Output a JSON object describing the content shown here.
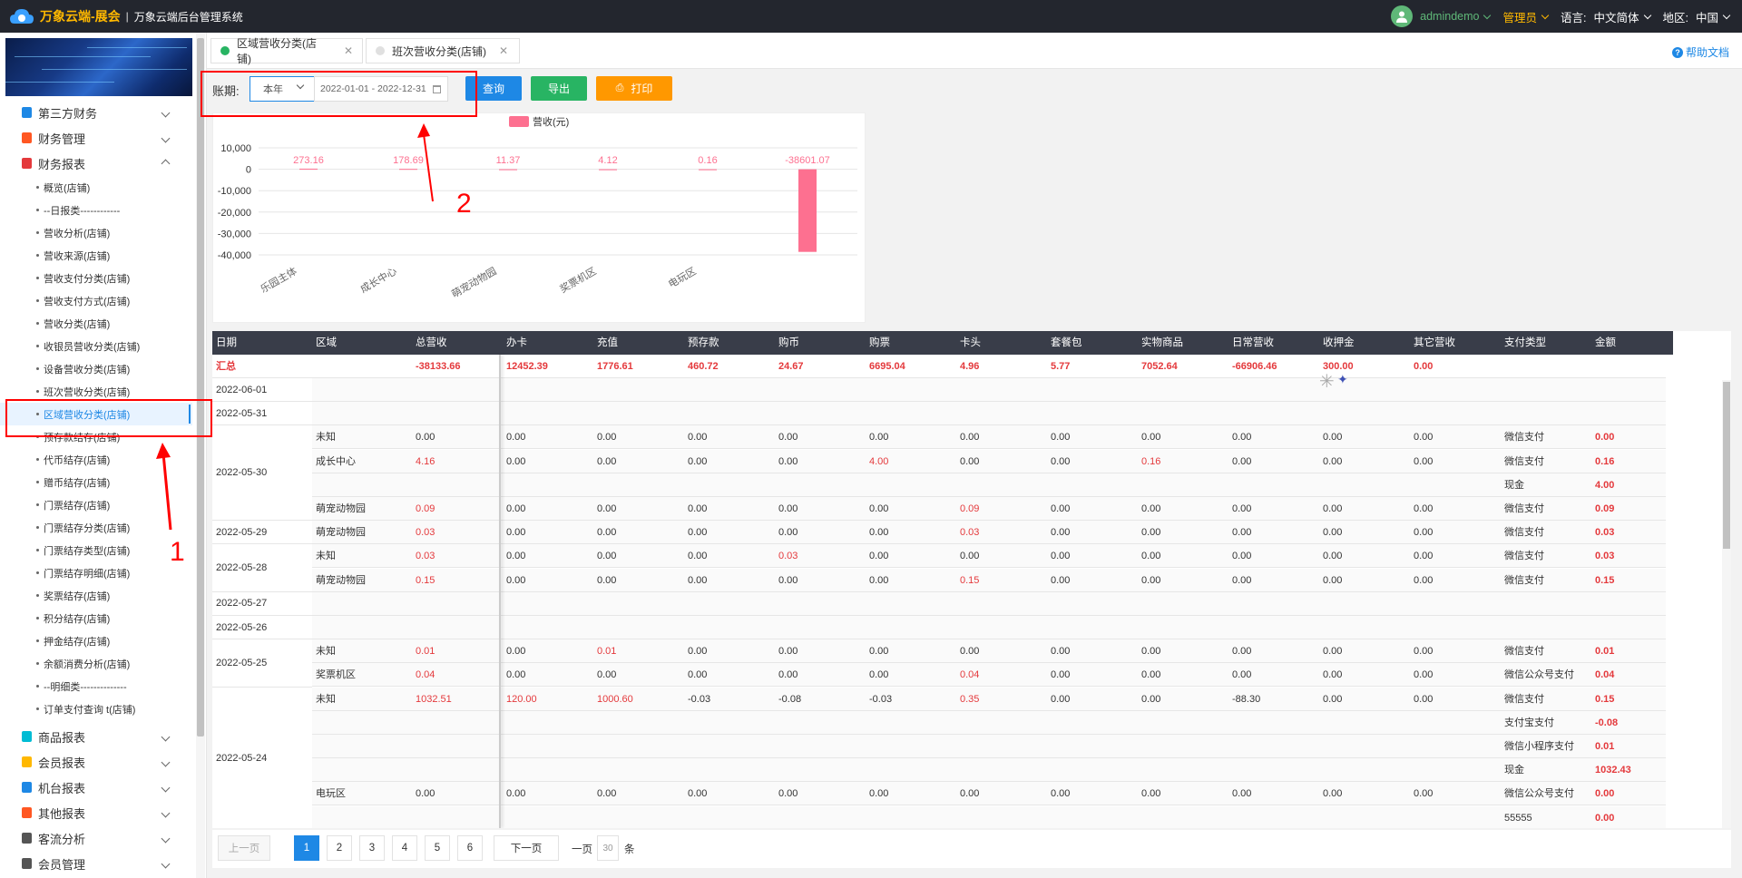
{
  "header": {
    "brand": "万象云端-展会",
    "separator": "|",
    "system_title": "万象云端后台管理系统",
    "user": "admindemo",
    "role": "管理员",
    "language_label": "语言:",
    "language_value": "中文简体",
    "region_label": "地区:",
    "region_value": "中国"
  },
  "sidebar": {
    "groups_top": [
      {
        "label": "第三方财务",
        "icon_color": "#1e88e5"
      },
      {
        "label": "财务管理",
        "icon_color": "#ff5722"
      },
      {
        "label": "财务报表",
        "icon_color": "#e4393c"
      }
    ],
    "sub_items": [
      "概览(店铺)",
      "--日报类------------",
      "营收分析(店铺)",
      "营收来源(店铺)",
      "营收支付分类(店铺)",
      "营收支付方式(店铺)",
      "营收分类(店铺)",
      "收银员营收分类(店铺)",
      "设备营收分类(店铺)",
      "班次营收分类(店铺)",
      "区域营收分类(店铺)",
      "预存款结存(店铺)",
      "代币结存(店铺)",
      "赠币结存(店铺)",
      "门票结存(店铺)",
      "门票结存分类(店铺)",
      "门票结存类型(店铺)",
      "门票结存明细(店铺)",
      "奖票结存(店铺)",
      "积分结存(店铺)",
      "押金结存(店铺)",
      "余额消费分析(店铺)",
      "--明细类--------------",
      "订单支付查询 t(店铺)"
    ],
    "active_index": 10,
    "groups_bottom": [
      {
        "label": "商品报表",
        "icon_color": "#00bcd4"
      },
      {
        "label": "会员报表",
        "icon_color": "#ffb800"
      },
      {
        "label": "机台报表",
        "icon_color": "#1e88e5"
      },
      {
        "label": "其他报表",
        "icon_color": "#ff5722"
      },
      {
        "label": "客流分析",
        "icon_color": "#555555"
      },
      {
        "label": "会员管理",
        "icon_color": "#555555"
      }
    ]
  },
  "tabs": [
    {
      "label": "区域营收分类(店铺)",
      "active": true
    },
    {
      "label": "班次营收分类(店铺)",
      "active": false
    }
  ],
  "help_label": "帮助文档",
  "filter": {
    "label": "账期:",
    "period": "本年",
    "date_range": "2022-01-01 - 2022-12-31",
    "query": "查询",
    "export": "导出",
    "print": "打印"
  },
  "annotations": {
    "one": "1",
    "two": "2"
  },
  "chart_data": {
    "type": "bar",
    "legend": "营收(元)",
    "categories": [
      "乐园主体",
      "成长中心",
      "萌宠动物园",
      "奖票机区",
      "电玩区",
      ""
    ],
    "values": [
      273.16,
      178.69,
      11.37,
      4.12,
      0.16,
      -38601.07
    ],
    "labels": [
      "273.16",
      "178.69",
      "11.37",
      "4.12",
      "0.16",
      "-38601.07"
    ],
    "yticks": [
      "10,000",
      "0",
      "-10,000",
      "-20,000",
      "-30,000",
      "-40,000"
    ],
    "ylim": [
      -40000,
      10000
    ],
    "color": "#fd7090"
  },
  "table": {
    "columns": [
      "日期",
      "区域",
      "总营收",
      "办卡",
      "充值",
      "预存款",
      "购币",
      "购票",
      "卡头",
      "套餐包",
      "实物商品",
      "日常营收",
      "收押金",
      "其它营收",
      "支付类型",
      "金额"
    ],
    "total_row": [
      "汇总",
      "",
      "-38133.66",
      "12452.39",
      "1776.61",
      "460.72",
      "24.67",
      "6695.04",
      "4.96",
      "5.77",
      "7052.64",
      "-66906.46",
      "300.00",
      "0.00",
      "",
      ""
    ],
    "rows": [
      [
        "",
        "",
        "",
        "",
        "",
        "",
        "",
        "",
        "",
        "",
        "",
        "",
        "",
        "",
        "",
        ""
      ],
      [
        "",
        "",
        "",
        "",
        "",
        "",
        "",
        "",
        "",
        "",
        "",
        "",
        "",
        "",
        "",
        ""
      ],
      [
        "",
        "未知",
        "0.00",
        "0.00",
        "0.00",
        "0.00",
        "0.00",
        "0.00",
        "0.00",
        "0.00",
        "0.00",
        "0.00",
        "0.00",
        "0.00",
        "微信支付",
        "0.00"
      ],
      [
        "",
        "成长中心",
        "4.16",
        "0.00",
        "0.00",
        "0.00",
        "0.00",
        "4.00",
        "0.00",
        "0.00",
        "0.16",
        "0.00",
        "0.00",
        "0.00",
        "微信支付",
        "0.16"
      ],
      [
        "",
        "",
        "",
        "",
        "",
        "",
        "",
        "",
        "",
        "",
        "",
        "",
        "",
        "",
        "现金",
        "4.00"
      ],
      [
        "",
        "萌宠动物园",
        "0.09",
        "0.00",
        "0.00",
        "0.00",
        "0.00",
        "0.00",
        "0.09",
        "0.00",
        "0.00",
        "0.00",
        "0.00",
        "0.00",
        "微信支付",
        "0.09"
      ],
      [
        "",
        "萌宠动物园",
        "0.03",
        "0.00",
        "0.00",
        "0.00",
        "0.00",
        "0.00",
        "0.03",
        "0.00",
        "0.00",
        "0.00",
        "0.00",
        "0.00",
        "微信支付",
        "0.03"
      ],
      [
        "",
        "未知",
        "0.03",
        "0.00",
        "0.00",
        "0.00",
        "0.03",
        "0.00",
        "0.00",
        "0.00",
        "0.00",
        "0.00",
        "0.00",
        "0.00",
        "微信支付",
        "0.03"
      ],
      [
        "",
        "萌宠动物园",
        "0.15",
        "0.00",
        "0.00",
        "0.00",
        "0.00",
        "0.00",
        "0.15",
        "0.00",
        "0.00",
        "0.00",
        "0.00",
        "0.00",
        "微信支付",
        "0.15"
      ],
      [
        "",
        "",
        "",
        "",
        "",
        "",
        "",
        "",
        "",
        "",
        "",
        "",
        "",
        "",
        "",
        ""
      ],
      [
        "",
        "",
        "",
        "",
        "",
        "",
        "",
        "",
        "",
        "",
        "",
        "",
        "",
        "",
        "",
        ""
      ],
      [
        "",
        "未知",
        "0.01",
        "0.00",
        "0.01",
        "0.00",
        "0.00",
        "0.00",
        "0.00",
        "0.00",
        "0.00",
        "0.00",
        "0.00",
        "0.00",
        "微信支付",
        "0.01"
      ],
      [
        "",
        "奖票机区",
        "0.04",
        "0.00",
        "0.00",
        "0.00",
        "0.00",
        "0.00",
        "0.04",
        "0.00",
        "0.00",
        "0.00",
        "0.00",
        "0.00",
        "微信公众号支付",
        "0.04"
      ],
      [
        "",
        "未知",
        "1032.51",
        "120.00",
        "1000.60",
        "-0.03",
        "-0.08",
        "-0.03",
        "0.35",
        "0.00",
        "0.00",
        "-88.30",
        "0.00",
        "0.00",
        "微信支付",
        "0.15"
      ],
      [
        "",
        "",
        "",
        "",
        "",
        "",
        "",
        "",
        "",
        "",
        "",
        "",
        "",
        "",
        "支付宝支付",
        "-0.08"
      ],
      [
        "",
        "",
        "",
        "",
        "",
        "",
        "",
        "",
        "",
        "",
        "",
        "",
        "",
        "",
        "微信小程序支付",
        "0.01"
      ],
      [
        "",
        "",
        "",
        "",
        "",
        "",
        "",
        "",
        "",
        "",
        "",
        "",
        "",
        "",
        "现金",
        "1032.43"
      ],
      [
        "",
        "电玩区",
        "0.00",
        "0.00",
        "0.00",
        "0.00",
        "0.00",
        "0.00",
        "0.00",
        "0.00",
        "0.00",
        "0.00",
        "0.00",
        "0.00",
        "微信公众号支付",
        "0.00"
      ],
      [
        "",
        "",
        "",
        "",
        "",
        "",
        "",
        "",
        "",
        "",
        "",
        "",
        "",
        "",
        "55555",
        "0.00"
      ]
    ],
    "dates": [
      {
        "label": "2022-06-01",
        "rows": [
          0,
          0
        ]
      },
      {
        "label": "2022-05-31",
        "rows": [
          1,
          1
        ]
      },
      {
        "label": "2022-05-30",
        "rows": [
          2,
          5
        ]
      },
      {
        "label": "2022-05-29",
        "rows": [
          6,
          6
        ]
      },
      {
        "label": "2022-05-28",
        "rows": [
          7,
          8
        ]
      },
      {
        "label": "2022-05-27",
        "rows": [
          9,
          9
        ]
      },
      {
        "label": "2022-05-26",
        "rows": [
          10,
          10
        ]
      },
      {
        "label": "2022-05-25",
        "rows": [
          11,
          12
        ]
      },
      {
        "label": "2022-05-24",
        "rows": [
          13,
          18
        ]
      }
    ]
  },
  "pager": {
    "prev": "上一页",
    "pages": [
      "1",
      "2",
      "3",
      "4",
      "5",
      "6"
    ],
    "current": "1",
    "next": "下一页",
    "per_page_label": "一页",
    "per_page": "30",
    "unit": "条"
  }
}
